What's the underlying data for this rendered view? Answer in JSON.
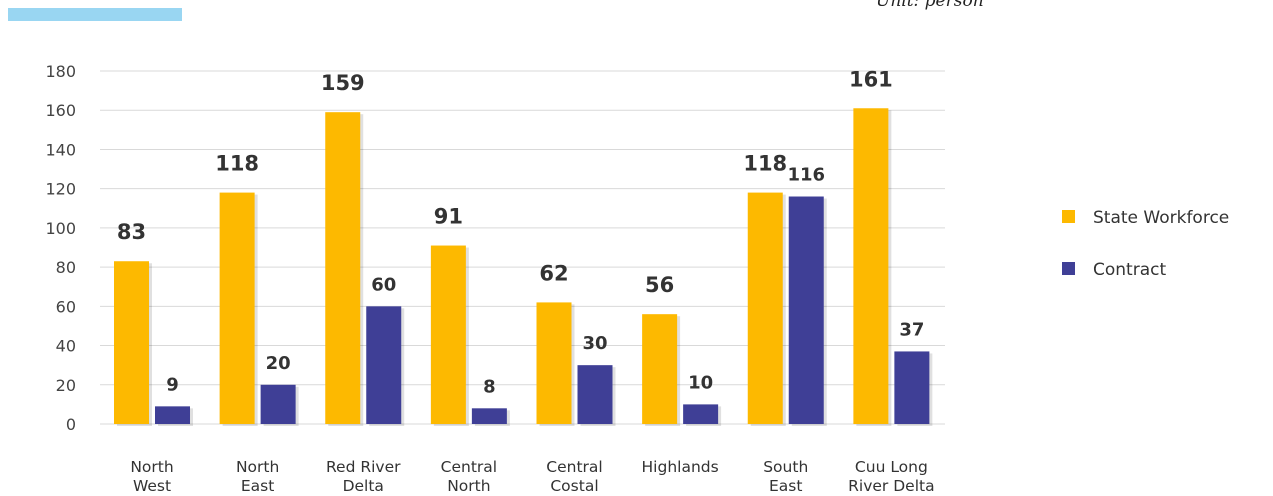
{
  "unit_label": "Unit: person",
  "colors": {
    "accent": "#99d6f2",
    "state": "#fdb900",
    "contract": "#3f3f96",
    "grid": "#d9d9d9"
  },
  "chart_data": {
    "type": "bar",
    "categories": [
      [
        "North",
        "West"
      ],
      [
        "North",
        "East"
      ],
      [
        "Red River",
        "Delta"
      ],
      [
        "Central",
        "North"
      ],
      [
        "Central",
        "Costal"
      ],
      [
        "Highlands"
      ],
      [
        "South",
        "East"
      ],
      [
        "Cuu Long",
        "River Delta"
      ]
    ],
    "series": [
      {
        "name": "State Workforce",
        "values": [
          83,
          118,
          159,
          91,
          62,
          56,
          118,
          161
        ]
      },
      {
        "name": "Contract",
        "values": [
          9,
          20,
          60,
          8,
          30,
          10,
          116,
          37
        ]
      }
    ],
    "yticks": [
      0,
      20,
      40,
      60,
      80,
      100,
      120,
      140,
      160,
      180
    ],
    "ylim": [
      0,
      180
    ],
    "grid": true,
    "legend_position": "right"
  }
}
